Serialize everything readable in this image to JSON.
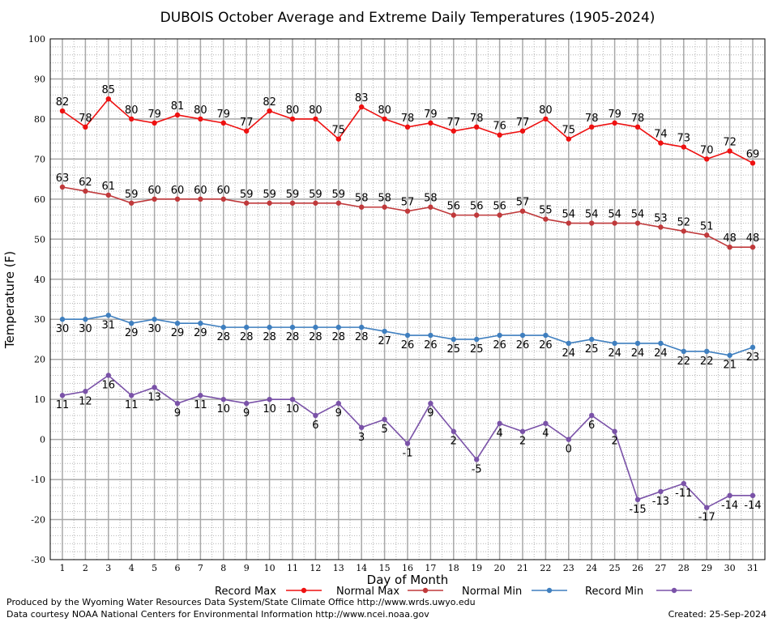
{
  "chart_data": {
    "type": "line",
    "title": "DUBOIS October Average and Extreme Daily Temperatures (1905-2024)",
    "xlabel": "Day of Month",
    "ylabel": "Temperature (F)",
    "ylim": [
      -30,
      100
    ],
    "ytick_step": 10,
    "x": [
      1,
      2,
      3,
      4,
      5,
      6,
      7,
      8,
      9,
      10,
      11,
      12,
      13,
      14,
      15,
      16,
      17,
      18,
      19,
      20,
      21,
      22,
      23,
      24,
      25,
      26,
      27,
      28,
      29,
      30,
      31
    ],
    "grid": true,
    "legend_position": "bottom",
    "series": [
      {
        "name": "Record Max",
        "color": "#ee1111",
        "values": [
          82,
          78,
          85,
          80,
          79,
          81,
          80,
          79,
          77,
          82,
          80,
          80,
          75,
          83,
          80,
          78,
          79,
          77,
          78,
          76,
          77,
          80,
          75,
          78,
          79,
          78,
          74,
          73,
          70,
          72,
          69
        ]
      },
      {
        "name": "Normal Max",
        "color": "#c0393b",
        "values": [
          63,
          62,
          61,
          59,
          60,
          60,
          60,
          60,
          59,
          59,
          59,
          59,
          59,
          58,
          58,
          57,
          58,
          56,
          56,
          56,
          57,
          55,
          54,
          54,
          54,
          54,
          53,
          52,
          51,
          48,
          48
        ]
      },
      {
        "name": "Normal Min",
        "color": "#3f7fbf",
        "values": [
          30,
          30,
          31,
          29,
          30,
          29,
          29,
          28,
          28,
          28,
          28,
          28,
          28,
          28,
          27,
          26,
          26,
          25,
          25,
          26,
          26,
          26,
          24,
          25,
          24,
          24,
          24,
          22,
          22,
          21,
          23
        ]
      },
      {
        "name": "Record Min",
        "color": "#7a52a8",
        "values": [
          11,
          12,
          16,
          11,
          13,
          9,
          11,
          10,
          9,
          10,
          10,
          6,
          9,
          3,
          5,
          -1,
          9,
          2,
          -5,
          4,
          2,
          4,
          0,
          6,
          2,
          -15,
          -13,
          -11,
          -17,
          -14,
          -14
        ]
      }
    ]
  },
  "footer": {
    "line1": "Produced by the Wyoming Water Resources Data System/State Climate Office http://www.wrds.uwyo.edu",
    "line2": "Data courtesy NOAA National Centers for Environmental Information http://www.ncei.noaa.gov",
    "created": "Created:  25-Sep-2024"
  }
}
